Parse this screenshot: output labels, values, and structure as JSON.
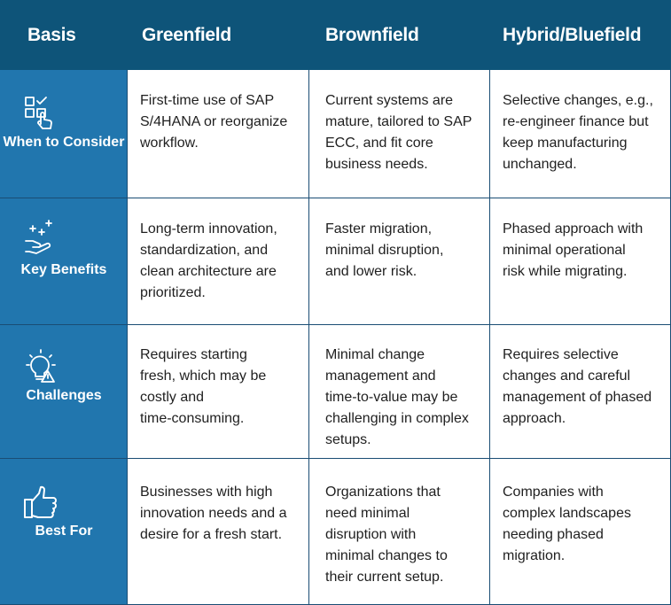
{
  "header": {
    "basis": "Basis",
    "greenfield": "Greenfield",
    "brownfield": "Brownfield",
    "hybrid": "Hybrid/Bluefield"
  },
  "rows": [
    {
      "label": "When to\nConsider",
      "icon": "checklist-hand-icon",
      "greenfield": "First-time use of SAP\nS/4HANA or reorganize\nworkflow.",
      "brownfield": "Current systems are\nmature, tailored to SAP\nECC, and fit core\nbusiness needs.",
      "hybrid": "Selective changes, e.g.,\nre-engineer finance but\nkeep manufacturing\nunchanged."
    },
    {
      "label": "Key\nBenefits",
      "icon": "hand-plus-icon",
      "greenfield": "Long-term innovation,\nstandardization, and\nclean architecture are\nprioritized.",
      "brownfield": "Faster migration,\nminimal disruption,\nand lower risk.",
      "hybrid": "Phased approach with\nminimal operational\nrisk while migrating."
    },
    {
      "label": "Challenges",
      "icon": "lightbulb-warning-icon",
      "greenfield": "Requires starting\nfresh, which may be\ncostly and\ntime-consuming.",
      "brownfield": "Minimal change\nmanagement and\ntime-to-value may be\nchallenging in complex\nsetups.",
      "hybrid": "Requires selective\nchanges and careful\nmanagement of phased\napproach."
    },
    {
      "label": "Best\nFor",
      "icon": "thumbs-up-icon",
      "greenfield": "Businesses with high\ninnovation needs and a\ndesire for a fresh start.",
      "brownfield": "Organizations that\nneed minimal\ndisruption with\nminimal changes to\ntheir current setup.",
      "hybrid": "Companies with\ncomplex landscapes\nneeding phased\nmigration."
    }
  ],
  "colors": {
    "header_bg": "#0e5479",
    "rowhead_bg": "#2176ae",
    "grid": "#1a4d74"
  }
}
